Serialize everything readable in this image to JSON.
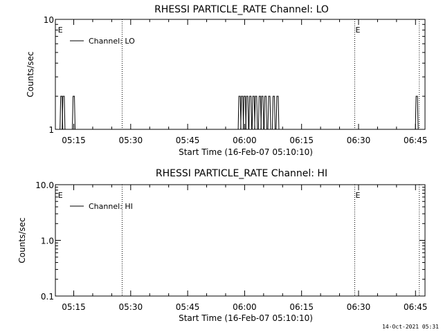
{
  "footer": {
    "timestamp": "14-Oct-2021 05:31"
  },
  "chart_data": [
    {
      "type": "line",
      "title": "RHESSI PARTICLE_RATE Channel: LO",
      "xlabel": "Start Time (16-Feb-07 05:10:10)",
      "ylabel": "Counts/sec",
      "yscale": "log",
      "ylim": [
        1,
        10
      ],
      "ytick_labels": [
        "1",
        "10"
      ],
      "xlim": [
        "05:10:10",
        "06:47:30"
      ],
      "xtick_labels": [
        "05:15",
        "05:30",
        "05:45",
        "06:00",
        "06:15",
        "06:30",
        "06:45"
      ],
      "legend": {
        "position": "top-left",
        "entries": [
          "Channel: LO"
        ]
      },
      "event_markers": [
        {
          "time": "05:10:40",
          "type": "start",
          "label": "E"
        },
        {
          "time": "05:27:45",
          "type": "dotted"
        },
        {
          "time": "06:29:00",
          "type": "start",
          "label": "E"
        },
        {
          "time": "06:46:00",
          "type": "dotted"
        }
      ],
      "series": [
        {
          "name": "Channel: LO",
          "spikes": [
            {
              "x": "05:11:45",
              "y": 2
            },
            {
              "x": "05:12:20",
              "y": 2
            },
            {
              "x": "05:15:00",
              "y": 2
            },
            {
              "x": "05:58:40",
              "y": 2
            },
            {
              "x": "05:59:20",
              "y": 2
            },
            {
              "x": "06:00:00",
              "y": 2
            },
            {
              "x": "06:00:40",
              "y": 2
            },
            {
              "x": "06:01:30",
              "y": 2
            },
            {
              "x": "06:02:20",
              "y": 2
            },
            {
              "x": "06:03:00",
              "y": 2
            },
            {
              "x": "06:04:00",
              "y": 2
            },
            {
              "x": "06:04:40",
              "y": 2
            },
            {
              "x": "06:05:30",
              "y": 2
            },
            {
              "x": "06:06:30",
              "y": 2
            },
            {
              "x": "06:07:40",
              "y": 2
            },
            {
              "x": "06:08:40",
              "y": 2
            },
            {
              "x": "06:45:20",
              "y": 2
            }
          ]
        }
      ]
    },
    {
      "type": "line",
      "title": "RHESSI PARTICLE_RATE Channel: HI",
      "xlabel": "Start Time (16-Feb-07 05:10:10)",
      "ylabel": "Counts/sec",
      "yscale": "log",
      "ylim": [
        0.1,
        10
      ],
      "ytick_labels": [
        "0.1",
        "1.0",
        "10.0"
      ],
      "xlim": [
        "05:10:10",
        "06:47:30"
      ],
      "xtick_labels": [
        "05:15",
        "05:30",
        "05:45",
        "06:00",
        "06:15",
        "06:30",
        "06:45"
      ],
      "legend": {
        "position": "top-left",
        "entries": [
          "Channel: HI"
        ]
      },
      "event_markers": [
        {
          "time": "05:10:40",
          "type": "start",
          "label": "E"
        },
        {
          "time": "05:27:45",
          "type": "dotted"
        },
        {
          "time": "06:29:00",
          "type": "start",
          "label": "E"
        },
        {
          "time": "06:46:00",
          "type": "dotted"
        }
      ],
      "series": [
        {
          "name": "Channel: HI",
          "spikes": []
        }
      ]
    }
  ]
}
